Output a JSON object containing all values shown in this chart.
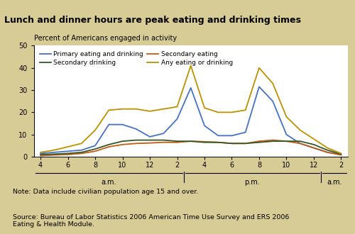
{
  "title": "Lunch and dinner hours are peak eating and drinking times",
  "ylabel": "Percent of Americans engaged in activity",
  "note": "Note: Data include civilian population age 15 and over.",
  "source": "Source: Bureau of Labor Statistics 2006 American Time Use Survey and ERS 2006\nEating & Health Module.",
  "title_bg": "#b0bdd0",
  "body_bg": "#d8cc96",
  "plot_bg": "#ffffff",
  "ylim": [
    0,
    50
  ],
  "yticks": [
    0,
    10,
    20,
    30,
    40,
    50
  ],
  "colors": {
    "primary": "#4472c4",
    "secondary_eating": "#c55a11",
    "secondary_drinking": "#375623",
    "any_eating": "#bf9000"
  },
  "legend": [
    {
      "label": "Primary eating and drinking",
      "color": "#4472c4"
    },
    {
      "label": "Secondary drinking",
      "color": "#375623"
    },
    {
      "label": "Secondary eating",
      "color": "#c55a11"
    },
    {
      "label": "Any eating or drinking",
      "color": "#bf9000"
    }
  ],
  "x_vals": [
    0,
    1,
    2,
    3,
    4,
    5,
    6,
    7,
    8,
    9,
    10,
    11,
    12,
    13,
    14,
    15,
    16,
    17,
    18,
    19,
    20,
    21,
    22
  ],
  "primary": [
    1.5,
    2.0,
    2.5,
    3.0,
    5.0,
    14.5,
    14.5,
    12.5,
    9.0,
    10.5,
    17.0,
    31.0,
    14.0,
    9.5,
    9.5,
    11.0,
    31.5,
    25.0,
    10.0,
    6.0,
    4.0,
    2.0,
    1.0
  ],
  "secondary_eating": [
    0.5,
    0.8,
    1.0,
    1.5,
    2.5,
    4.5,
    5.5,
    6.0,
    6.2,
    6.5,
    6.5,
    7.0,
    6.8,
    6.5,
    6.0,
    6.0,
    7.0,
    7.5,
    7.0,
    6.0,
    4.0,
    2.0,
    0.8
  ],
  "secondary_drinking": [
    1.0,
    1.2,
    1.5,
    2.0,
    3.5,
    5.5,
    7.0,
    7.5,
    7.5,
    7.5,
    7.0,
    7.0,
    6.5,
    6.5,
    6.0,
    6.0,
    6.5,
    7.0,
    7.0,
    7.0,
    5.5,
    3.0,
    1.2
  ],
  "any_eating": [
    2.0,
    3.0,
    4.5,
    6.0,
    12.0,
    21.0,
    21.5,
    21.5,
    20.5,
    21.5,
    22.5,
    41.0,
    22.0,
    20.0,
    20.0,
    21.0,
    40.0,
    33.0,
    18.0,
    12.0,
    8.0,
    4.0,
    1.5
  ],
  "x_tick_positions": [
    0,
    2,
    4,
    6,
    8,
    10,
    11,
    13,
    15,
    17,
    19,
    21
  ],
  "x_tick_labels": [
    "4",
    "6",
    "8",
    "10",
    "12",
    "2",
    "4",
    "6",
    "8",
    "10",
    "12",
    "2"
  ],
  "xlim": [
    -0.5,
    22.5
  ],
  "sections": [
    {
      "label": "a.m.",
      "x0_data": -0.5,
      "x1_data": 10.5
    },
    {
      "label": "p.m.",
      "x0_data": 10.5,
      "x1_data": 20.5
    },
    {
      "label": "a.m.",
      "x0_data": 20.5,
      "x1_data": 22.5
    }
  ]
}
